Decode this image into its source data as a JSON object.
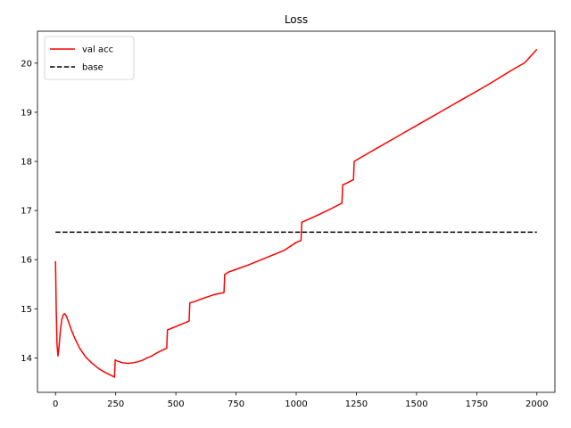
{
  "chart_data": {
    "type": "line",
    "title": "Loss",
    "xlabel": "",
    "ylabel": "",
    "xlim": [
      -75,
      2075
    ],
    "ylim": [
      13.3,
      20.65
    ],
    "xticks": [
      0,
      250,
      500,
      750,
      1000,
      1250,
      1500,
      1750,
      2000
    ],
    "yticks": [
      14,
      15,
      16,
      17,
      18,
      19,
      20
    ],
    "grid": false,
    "legend": {
      "position": "top-left"
    },
    "series": [
      {
        "name": "val acc",
        "color": "#ff0000",
        "style": "solid",
        "points": [
          [
            0,
            15.97
          ],
          [
            3,
            15.0
          ],
          [
            6,
            14.3
          ],
          [
            10,
            14.04
          ],
          [
            14,
            14.2
          ],
          [
            20,
            14.55
          ],
          [
            26,
            14.78
          ],
          [
            32,
            14.88
          ],
          [
            38,
            14.9
          ],
          [
            45,
            14.85
          ],
          [
            55,
            14.72
          ],
          [
            65,
            14.58
          ],
          [
            80,
            14.4
          ],
          [
            100,
            14.2
          ],
          [
            125,
            14.02
          ],
          [
            150,
            13.9
          ],
          [
            175,
            13.8
          ],
          [
            200,
            13.72
          ],
          [
            225,
            13.66
          ],
          [
            245,
            13.61
          ],
          [
            248,
            13.96
          ],
          [
            260,
            13.93
          ],
          [
            280,
            13.9
          ],
          [
            300,
            13.89
          ],
          [
            320,
            13.9
          ],
          [
            340,
            13.92
          ],
          [
            360,
            13.95
          ],
          [
            380,
            14.0
          ],
          [
            400,
            14.04
          ],
          [
            420,
            14.1
          ],
          [
            440,
            14.15
          ],
          [
            462,
            14.2
          ],
          [
            465,
            14.57
          ],
          [
            480,
            14.6
          ],
          [
            500,
            14.64
          ],
          [
            520,
            14.68
          ],
          [
            540,
            14.72
          ],
          [
            555,
            14.75
          ],
          [
            558,
            15.12
          ],
          [
            580,
            15.15
          ],
          [
            600,
            15.19
          ],
          [
            630,
            15.24
          ],
          [
            660,
            15.29
          ],
          [
            700,
            15.33
          ],
          [
            703,
            15.7
          ],
          [
            720,
            15.75
          ],
          [
            760,
            15.82
          ],
          [
            800,
            15.89
          ],
          [
            850,
            15.99
          ],
          [
            900,
            16.09
          ],
          [
            950,
            16.19
          ],
          [
            1000,
            16.35
          ],
          [
            1020,
            16.39
          ],
          [
            1023,
            16.76
          ],
          [
            1050,
            16.82
          ],
          [
            1100,
            16.93
          ],
          [
            1150,
            17.05
          ],
          [
            1190,
            17.15
          ],
          [
            1193,
            17.52
          ],
          [
            1210,
            17.56
          ],
          [
            1238,
            17.63
          ],
          [
            1241,
            18.0
          ],
          [
            1300,
            18.17
          ],
          [
            1350,
            18.31
          ],
          [
            1400,
            18.45
          ],
          [
            1450,
            18.59
          ],
          [
            1500,
            18.73
          ],
          [
            1550,
            18.87
          ],
          [
            1600,
            19.01
          ],
          [
            1650,
            19.15
          ],
          [
            1700,
            19.29
          ],
          [
            1750,
            19.43
          ],
          [
            1800,
            19.57
          ],
          [
            1850,
            19.72
          ],
          [
            1900,
            19.87
          ],
          [
            1950,
            20.01
          ],
          [
            2000,
            20.28
          ]
        ]
      },
      {
        "name": "base",
        "color": "#000000",
        "style": "dashed",
        "points": [
          [
            0,
            16.56
          ],
          [
            2000,
            16.56
          ]
        ]
      }
    ]
  }
}
